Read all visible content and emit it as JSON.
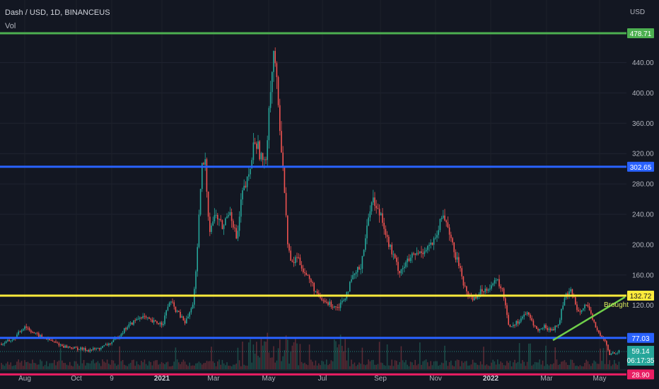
{
  "header": {
    "symbol_title": "Dash / USD, 1D, BINANCEUS",
    "indicator_label": "Vol"
  },
  "chart_data": {
    "type": "candlestick",
    "currency_label": "USD",
    "y_axis": {
      "ticks": [
        "440.00",
        "400.00",
        "360.00",
        "320.00",
        "280.00",
        "240.00",
        "200.00",
        "160.00",
        "120.00"
      ],
      "tick_values": [
        440,
        400,
        360,
        320,
        280,
        240,
        200,
        160,
        120
      ]
    },
    "x_axis": {
      "labels": [
        {
          "text": "Aug",
          "bold": false
        },
        {
          "text": "Oct",
          "bold": false
        },
        {
          "text": "9",
          "bold": false
        },
        {
          "text": "2021",
          "bold": true
        },
        {
          "text": "Mar",
          "bold": false
        },
        {
          "text": "May",
          "bold": false
        },
        {
          "text": "Jul",
          "bold": false
        },
        {
          "text": "Sep",
          "bold": false
        },
        {
          "text": "Nov",
          "bold": false
        },
        {
          "text": "2022",
          "bold": true
        },
        {
          "text": "Mar",
          "bold": false
        },
        {
          "text": "May",
          "bold": false
        }
      ]
    },
    "horizontal_levels": [
      {
        "value": 478.71,
        "label": "478.71",
        "color": "#4caf50",
        "text_color": "#ffffff"
      },
      {
        "value": 302.65,
        "label": "302.65",
        "color": "#2962ff",
        "text_color": "#ffffff"
      },
      {
        "value": 132.72,
        "label": "132.72",
        "color": "#ffeb3b",
        "text_color": "#131722"
      },
      {
        "value": 77.03,
        "label": "77.03",
        "color": "#2962ff",
        "text_color": "#ffffff"
      },
      {
        "value": 28.9,
        "label": "28.90",
        "color": "#e91e63",
        "text_color": "#ffffff"
      }
    ],
    "last_price": {
      "value": 59.14,
      "label": "59.14",
      "countdown": "06:17:35",
      "color": "#26a69a"
    },
    "annotation": {
      "text": "Brought"
    },
    "price_path": [
      [
        0,
        68
      ],
      [
        20,
        76
      ],
      [
        35,
        93
      ],
      [
        50,
        82
      ],
      [
        70,
        74
      ],
      [
        90,
        66
      ],
      [
        110,
        63
      ],
      [
        125,
        61
      ],
      [
        140,
        63
      ],
      [
        160,
        72
      ],
      [
        180,
        92
      ],
      [
        200,
        106
      ],
      [
        215,
        98
      ],
      [
        230,
        96
      ],
      [
        240,
        126
      ],
      [
        250,
        112
      ],
      [
        262,
        97
      ],
      [
        272,
        118
      ],
      [
        278,
        170
      ],
      [
        285,
        300
      ],
      [
        290,
        310
      ],
      [
        296,
        220
      ],
      [
        305,
        240
      ],
      [
        315,
        222
      ],
      [
        325,
        248
      ],
      [
        335,
        205
      ],
      [
        342,
        265
      ],
      [
        352,
        288
      ],
      [
        360,
        340
      ],
      [
        368,
        320
      ],
      [
        375,
        300
      ],
      [
        382,
        405
      ],
      [
        388,
        460
      ],
      [
        394,
        370
      ],
      [
        400,
        310
      ],
      [
        406,
        210
      ],
      [
        412,
        172
      ],
      [
        420,
        185
      ],
      [
        430,
        165
      ],
      [
        440,
        150
      ],
      [
        452,
        128
      ],
      [
        465,
        122
      ],
      [
        478,
        118
      ],
      [
        488,
        132
      ],
      [
        500,
        158
      ],
      [
        510,
        172
      ],
      [
        518,
        215
      ],
      [
        526,
        265
      ],
      [
        533,
        245
      ],
      [
        540,
        240
      ],
      [
        548,
        205
      ],
      [
        556,
        185
      ],
      [
        565,
        165
      ],
      [
        574,
        175
      ],
      [
        584,
        185
      ],
      [
        595,
        190
      ],
      [
        606,
        198
      ],
      [
        616,
        205
      ],
      [
        626,
        240
      ],
      [
        634,
        225
      ],
      [
        642,
        188
      ],
      [
        650,
        172
      ],
      [
        658,
        140
      ],
      [
        668,
        128
      ],
      [
        680,
        138
      ],
      [
        692,
        145
      ],
      [
        704,
        152
      ],
      [
        712,
        135
      ],
      [
        720,
        92
      ],
      [
        732,
        98
      ],
      [
        744,
        110
      ],
      [
        752,
        100
      ],
      [
        760,
        86
      ],
      [
        770,
        92
      ],
      [
        780,
        87
      ],
      [
        790,
        95
      ],
      [
        798,
        130
      ],
      [
        808,
        138
      ],
      [
        818,
        112
      ],
      [
        828,
        122
      ],
      [
        838,
        102
      ],
      [
        848,
        80
      ],
      [
        856,
        72
      ],
      [
        862,
        55
      ],
      [
        868,
        58
      ],
      [
        875,
        59
      ]
    ]
  }
}
